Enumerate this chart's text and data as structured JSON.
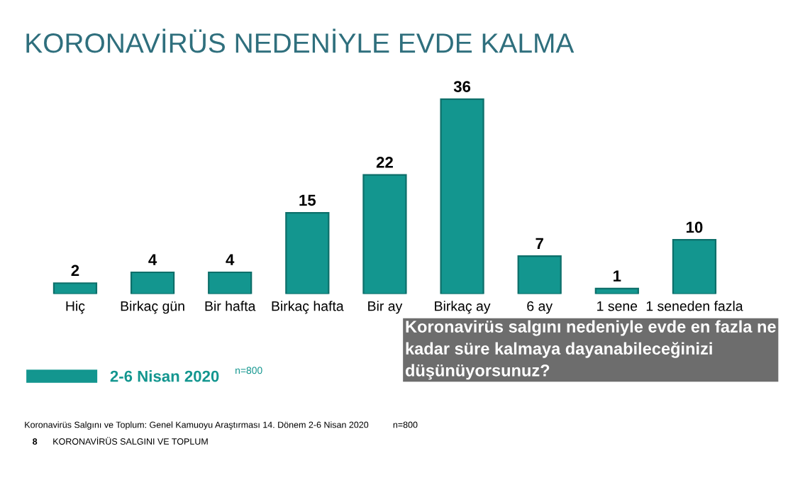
{
  "chart_data": {
    "type": "bar",
    "title": "KORONAVİRÜS NEDENİYLE EVDE KALMA",
    "categories": [
      "Hiç",
      "Birkaç gün",
      "Bir hafta",
      "Birkaç hafta",
      "Bir ay",
      "Birkaç ay",
      "6 ay",
      "1 sene",
      "1 seneden fazla"
    ],
    "series": [
      {
        "name": "2-6 Nisan 2020",
        "color": "#13968f",
        "values": [
          2,
          4,
          4,
          15,
          22,
          36,
          7,
          1,
          10
        ]
      }
    ],
    "data_labels": true,
    "legend": "bottom left",
    "annotations": [
      "n=800",
      "Koronavirüs salgını nedeniyle evde en fazla ne kadar süre kalmaya dayanabileceğinizi düşünüyorsunuz?",
      "Koronavirüs Salgını ve Toplum: Genel Kamuoyu Araştırması 14. Dönem 2-6 Nisan 2020",
      "n=800",
      "8",
      "KORONAVİRÜS SALGINI VE TOPLUM"
    ]
  }
}
